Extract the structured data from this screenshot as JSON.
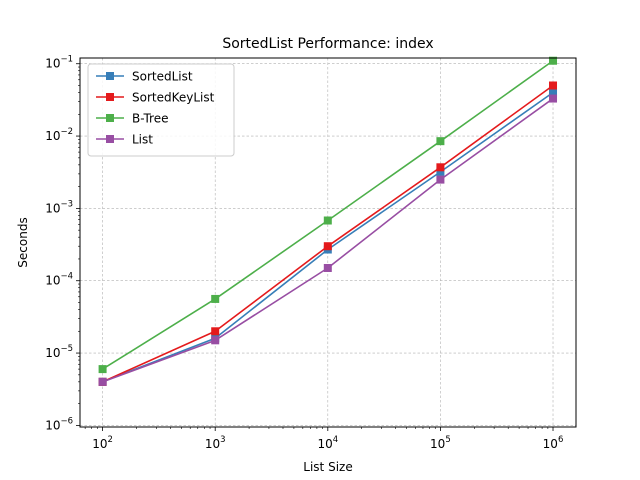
{
  "chart_data": {
    "type": "line",
    "title": "SortedList Performance: index",
    "xlabel": "List Size",
    "ylabel": "Seconds",
    "xscale": "log",
    "yscale": "log",
    "xlim": [
      63,
      1600000
    ],
    "ylim": [
      9.5e-07,
      0.12
    ],
    "grid": true,
    "legend_position": "upper-left",
    "x": [
      100,
      1000,
      10000,
      100000,
      1000000
    ],
    "x_ticks": [
      {
        "value": 100,
        "base": "10",
        "exp": "2"
      },
      {
        "value": 1000,
        "base": "10",
        "exp": "3"
      },
      {
        "value": 10000,
        "base": "10",
        "exp": "4"
      },
      {
        "value": 100000,
        "base": "10",
        "exp": "5"
      },
      {
        "value": 1000000,
        "base": "10",
        "exp": "6"
      }
    ],
    "y_ticks": [
      {
        "value": 1e-06,
        "base": "10",
        "exp": "−6"
      },
      {
        "value": 1e-05,
        "base": "10",
        "exp": "−5"
      },
      {
        "value": 0.0001,
        "base": "10",
        "exp": "−4"
      },
      {
        "value": 0.001,
        "base": "10",
        "exp": "−3"
      },
      {
        "value": 0.01,
        "base": "10",
        "exp": "−2"
      },
      {
        "value": 0.1,
        "base": "10",
        "exp": "−1"
      }
    ],
    "series": [
      {
        "name": "SortedList",
        "color": "#377eb8",
        "values": [
          4e-06,
          1.6e-05,
          0.00027,
          0.0032,
          0.04
        ]
      },
      {
        "name": "SortedKeyList",
        "color": "#e41a1c",
        "values": [
          4e-06,
          2e-05,
          0.0003,
          0.0037,
          0.05
        ]
      },
      {
        "name": "B-Tree",
        "color": "#4daf4a",
        "values": [
          6e-06,
          5.6e-05,
          0.00068,
          0.0085,
          0.11
        ]
      },
      {
        "name": "List",
        "color": "#984ea3",
        "values": [
          4e-06,
          1.5e-05,
          0.00015,
          0.0025,
          0.033
        ]
      }
    ]
  }
}
